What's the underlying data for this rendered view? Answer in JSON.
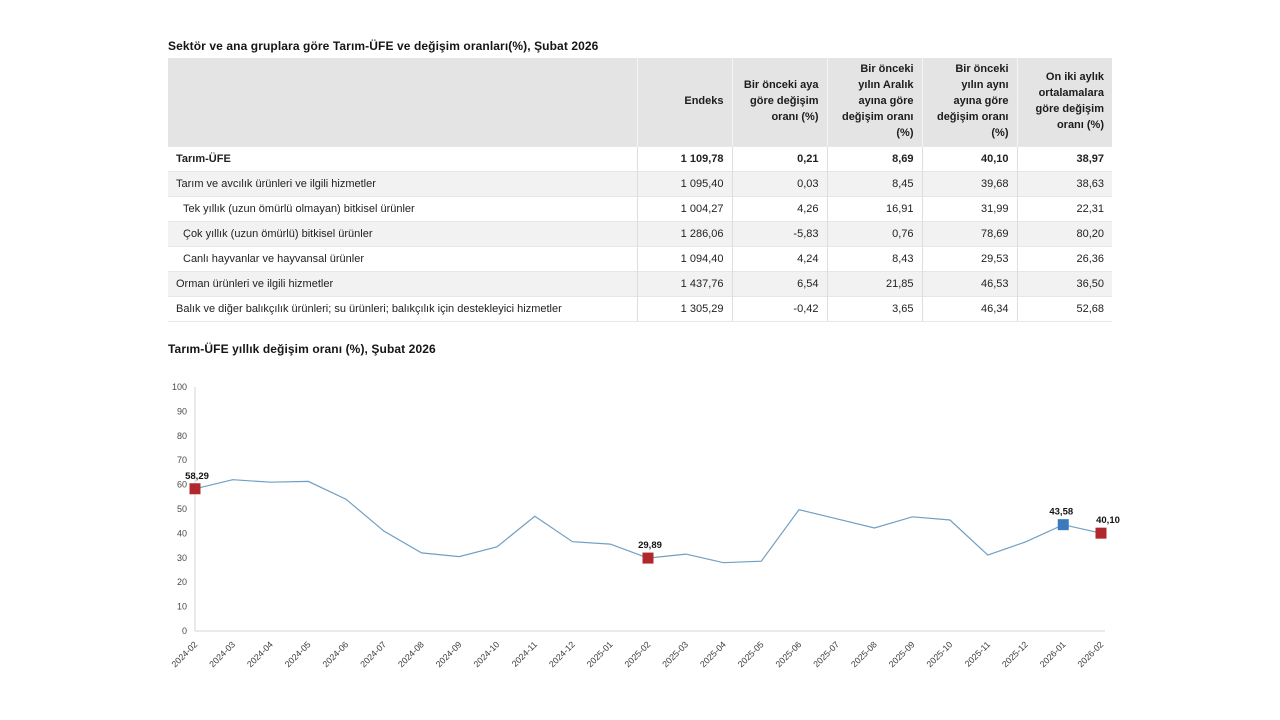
{
  "table": {
    "title": "Sektör ve ana gruplara göre Tarım-ÜFE ve değişim oranları(%), Şubat 2026",
    "columns": [
      "Endeks",
      "Bir önceki aya göre değişim oranı (%)",
      "Bir önceki yılın Aralık ayına göre değişim oranı (%)",
      "Bir önceki yılın aynı ayına göre değişim oranı (%)",
      "On iki aylık ortalamalara göre değişim oranı (%)"
    ],
    "rows": [
      {
        "label": "Tarım-ÜFE",
        "bold": true,
        "indent": 0,
        "shaded": false,
        "values": [
          "1 109,78",
          "0,21",
          "8,69",
          "40,10",
          "38,97"
        ]
      },
      {
        "label": "Tarım ve avcılık ürünleri ve ilgili hizmetler",
        "bold": false,
        "indent": 0,
        "shaded": true,
        "values": [
          "1 095,40",
          "0,03",
          "8,45",
          "39,68",
          "38,63"
        ]
      },
      {
        "label": "Tek yıllık (uzun ömürlü olmayan) bitkisel ürünler",
        "bold": false,
        "indent": 1,
        "shaded": false,
        "values": [
          "1 004,27",
          "4,26",
          "16,91",
          "31,99",
          "22,31"
        ]
      },
      {
        "label": "Çok yıllık (uzun ömürlü) bitkisel ürünler",
        "bold": false,
        "indent": 1,
        "shaded": true,
        "values": [
          "1 286,06",
          "-5,83",
          "0,76",
          "78,69",
          "80,20"
        ]
      },
      {
        "label": "Canlı hayvanlar ve hayvansal ürünler",
        "bold": false,
        "indent": 1,
        "shaded": false,
        "values": [
          "1 094,40",
          "4,24",
          "8,43",
          "29,53",
          "26,36"
        ]
      },
      {
        "label": "Orman ürünleri ve ilgili hizmetler",
        "bold": false,
        "indent": 0,
        "shaded": true,
        "values": [
          "1 437,76",
          "6,54",
          "21,85",
          "46,53",
          "36,50"
        ]
      },
      {
        "label": "Balık ve diğer balıkçılık ürünleri; su ürünleri; balıkçılık için destekleyici hizmetler",
        "bold": false,
        "indent": 0,
        "shaded": false,
        "values": [
          "1 305,29",
          "-0,42",
          "3,65",
          "46,34",
          "52,68"
        ]
      }
    ]
  },
  "chart_data": {
    "type": "line",
    "title": "Tarım-ÜFE yıllık değişim oranı (%), Şubat 2026",
    "xlabel": "",
    "ylabel": "",
    "ylim": [
      0,
      100
    ],
    "ytick_step": 10,
    "grid": false,
    "legend": false,
    "line_color": "#6f9fc4",
    "x": [
      "2024-02",
      "2024-03",
      "2024-04",
      "2024-05",
      "2024-06",
      "2024-07",
      "2024-08",
      "2024-09",
      "2024-10",
      "2024-11",
      "2024-12",
      "2025-01",
      "2025-02",
      "2025-03",
      "2025-04",
      "2025-05",
      "2025-06",
      "2025-07",
      "2025-08",
      "2025-09",
      "2025-10",
      "2025-11",
      "2025-12",
      "2026-01",
      "2026-02"
    ],
    "values": [
      58.29,
      62.0,
      61.0,
      61.3,
      54.0,
      41.0,
      32.0,
      30.5,
      34.5,
      47.0,
      36.6,
      35.6,
      29.89,
      31.5,
      28.0,
      28.6,
      49.7,
      46.0,
      42.2,
      46.8,
      45.5,
      31.1,
      36.5,
      43.58,
      40.1
    ],
    "markers": [
      {
        "x": "2024-02",
        "value": 58.29,
        "label": "58,29",
        "color": "#b0282c"
      },
      {
        "x": "2025-02",
        "value": 29.89,
        "label": "29,89",
        "color": "#b0282c"
      },
      {
        "x": "2026-01",
        "value": 43.58,
        "label": "43,58",
        "color": "#3a7abd"
      },
      {
        "x": "2026-02",
        "value": 40.1,
        "label": "40,10",
        "color": "#b0282c"
      }
    ]
  }
}
